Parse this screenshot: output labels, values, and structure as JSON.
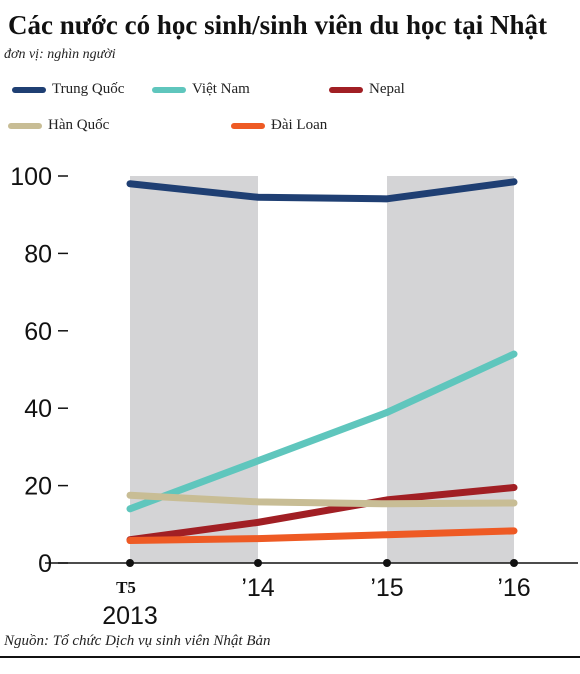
{
  "title": "Các nước có học sinh/sinh viên du học tại Nhật",
  "unit_note": "đơn vị: nghìn người",
  "source": "Nguồn: Tổ chức Dịch vụ sinh viên Nhật Bản",
  "legend": [
    {
      "label": "Trung Quốc",
      "color": "#1f3f73"
    },
    {
      "label": "Việt Nam",
      "color": "#5fc6bd"
    },
    {
      "label": "Nepal",
      "color": "#a11f24"
    },
    {
      "label": "Hàn Quốc",
      "color": "#c8bd95"
    },
    {
      "label": "Đài Loan",
      "color": "#ee5a24"
    }
  ],
  "chart_data": {
    "type": "line",
    "x_ticks": [
      {
        "top": "T5",
        "bottom": "2013"
      },
      {
        "top": "’14",
        "bottom": ""
      },
      {
        "top": "’15",
        "bottom": ""
      },
      {
        "top": "’16",
        "bottom": ""
      }
    ],
    "y_ticks": [
      0,
      20,
      40,
      60,
      80,
      100
    ],
    "ylim": [
      0,
      100
    ],
    "shaded_bands": [
      [
        0,
        1
      ],
      [
        2,
        3
      ]
    ],
    "band_color": "#d4d4d6",
    "series": [
      {
        "name": "Trung Quốc",
        "color": "#1f3f73",
        "values": [
          98,
          94.5,
          94.1,
          98.5
        ]
      },
      {
        "name": "Việt Nam",
        "color": "#5fc6bd",
        "values": [
          14,
          26.4,
          38.9,
          54
        ]
      },
      {
        "name": "Nepal",
        "color": "#a11f24",
        "values": [
          6,
          10.5,
          16.3,
          19.5
        ]
      },
      {
        "name": "Hàn Quốc",
        "color": "#c8bd95",
        "values": [
          17.5,
          15.8,
          15.3,
          15.5
        ]
      },
      {
        "name": "Đài Loan",
        "color": "#ee5a24",
        "values": [
          5.8,
          6.3,
          7.3,
          8.3
        ]
      }
    ],
    "grid": false
  }
}
